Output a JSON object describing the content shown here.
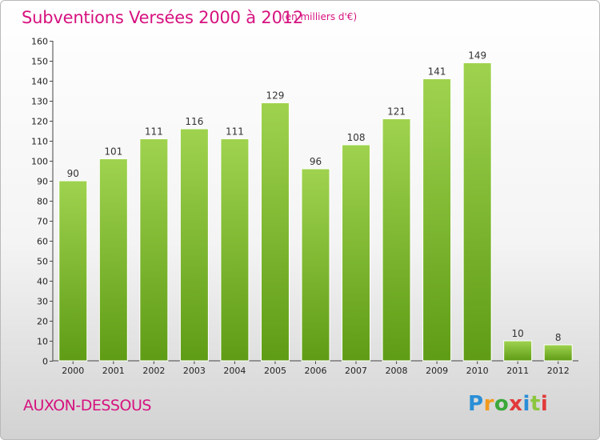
{
  "chart_data": {
    "type": "bar",
    "title": "Subventions Versées 2000 à 2012",
    "subtitle": "(en milliers d'€)",
    "categories": [
      "2000",
      "2001",
      "2002",
      "2003",
      "2004",
      "2005",
      "2006",
      "2007",
      "2008",
      "2009",
      "2010",
      "2011",
      "2012"
    ],
    "values": [
      90,
      101,
      111,
      116,
      111,
      129,
      96,
      108,
      121,
      141,
      149,
      10,
      8
    ],
    "xlabel": "",
    "ylabel": "",
    "ylim": [
      0,
      160
    ],
    "yticks": [
      0,
      10,
      20,
      30,
      40,
      50,
      60,
      70,
      80,
      90,
      100,
      110,
      120,
      130,
      140,
      150,
      160
    ],
    "grid": false,
    "bar_color": "#8cc63f"
  },
  "footer": {
    "place": "AUXON-DESSOUS",
    "logo": "Proxiti",
    "logo_colors": [
      "#2a8fd6",
      "#f39a1d",
      "#3aa83a",
      "#e23a3a",
      "#2a8fd6",
      "#8cc63f",
      "#e23a3a"
    ]
  }
}
